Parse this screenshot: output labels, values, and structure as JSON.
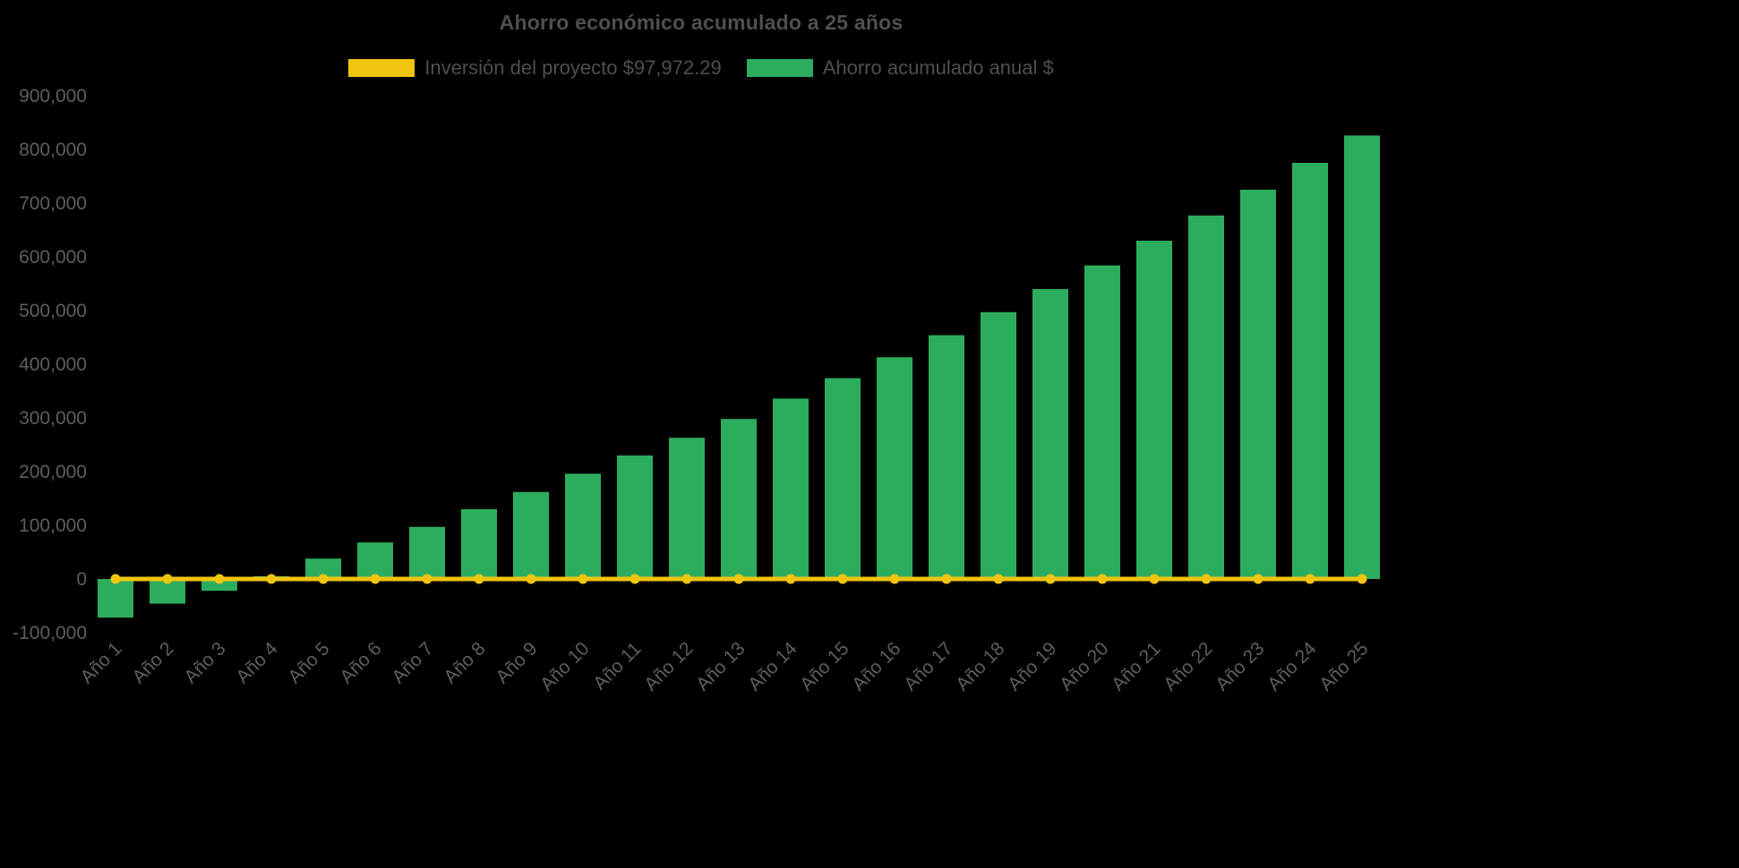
{
  "chart_data": {
    "type": "bar",
    "title": "Ahorro económico acumulado a 25 años",
    "categories": [
      "Año 1",
      "Año 2",
      "Año 3",
      "Año 4",
      "Año 5",
      "Año 6",
      "Año 7",
      "Año 8",
      "Año 9",
      "Año 10",
      "Año 11",
      "Año 12",
      "Año 13",
      "Año 14",
      "Año 15",
      "Año 16",
      "Año 17",
      "Año 18",
      "Año 19",
      "Año 20",
      "Año 21",
      "Año 22",
      "Año 23",
      "Año 24",
      "Año 25"
    ],
    "series": [
      {
        "name": "Inversión del proyecto $97,972.29",
        "type": "line",
        "color": "#F1C40F",
        "marker": "circle",
        "values": [
          0,
          0,
          0,
          0,
          0,
          0,
          0,
          0,
          0,
          0,
          0,
          0,
          0,
          0,
          0,
          0,
          0,
          0,
          0,
          0,
          0,
          0,
          0,
          0,
          0
        ]
      },
      {
        "name": "Ahorro acumulado anual $",
        "type": "column",
        "color": "#2CAD5E",
        "values": [
          -72000,
          -46000,
          -22000,
          5000,
          38000,
          68000,
          97000,
          130000,
          162000,
          196000,
          230000,
          263000,
          298000,
          336000,
          374000,
          413000,
          454000,
          497000,
          540000,
          584000,
          630000,
          677000,
          725000,
          775000,
          826000
        ]
      }
    ],
    "yaxis": {
      "min": -100000,
      "max": 900000,
      "tick_interval": 100000,
      "label_format": "thousands-comma"
    },
    "xaxis": {
      "label_rotation": -45
    },
    "legend_position": "top-center",
    "grid": false,
    "background_color": "#000000"
  }
}
